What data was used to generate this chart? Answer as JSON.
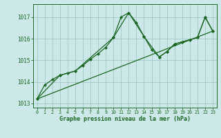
{
  "title": "Graphe pression niveau de la mer (hPa)",
  "background_color": "#cce8e8",
  "grid_color": "#a0c8c8",
  "line_color": "#1a6620",
  "marker_color": "#1a6620",
  "xlim": [
    -0.5,
    23.5
  ],
  "ylim": [
    1012.8,
    1017.6
  ],
  "yticks": [
    1013,
    1014,
    1015,
    1016,
    1017
  ],
  "xticks": [
    0,
    1,
    2,
    3,
    4,
    5,
    6,
    7,
    8,
    9,
    10,
    11,
    12,
    13,
    14,
    15,
    16,
    17,
    18,
    19,
    20,
    21,
    22,
    23
  ],
  "series1_x": [
    0,
    1,
    2,
    3,
    4,
    5,
    6,
    7,
    8,
    9,
    10,
    11,
    12,
    13,
    14,
    15,
    16,
    17,
    18,
    19,
    20,
    21,
    22,
    23
  ],
  "series1_y": [
    1013.2,
    1013.85,
    1014.1,
    1014.3,
    1014.4,
    1014.5,
    1014.75,
    1015.05,
    1015.3,
    1015.6,
    1016.05,
    1017.0,
    1017.2,
    1016.75,
    1016.1,
    1015.5,
    1015.15,
    1015.4,
    1015.75,
    1015.85,
    1015.95,
    1016.05,
    1017.0,
    1016.35
  ],
  "series2_x": [
    0,
    3,
    5,
    10,
    12,
    14,
    16,
    17,
    18,
    21,
    22,
    23
  ],
  "series2_y": [
    1013.2,
    1014.3,
    1014.5,
    1016.05,
    1017.2,
    1016.1,
    1015.15,
    1015.4,
    1015.75,
    1016.05,
    1017.0,
    1016.35
  ],
  "series3_x": [
    0,
    23
  ],
  "series3_y": [
    1013.2,
    1016.35
  ]
}
